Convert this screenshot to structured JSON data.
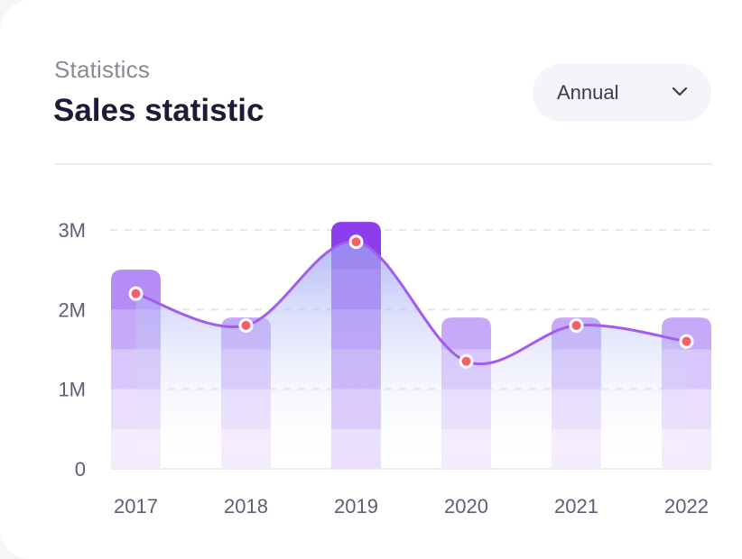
{
  "header": {
    "subtitle": "Statistics",
    "title": "Sales statistic"
  },
  "filter": {
    "selected": "Annual",
    "icon": "chevron-down-icon"
  },
  "colors": {
    "accent": "#a855f7",
    "dot": "#f0616c",
    "grid": "#e4e4ea"
  },
  "chart_data": {
    "type": "bar",
    "categories": [
      "2017",
      "2018",
      "2019",
      "2020",
      "2021",
      "2022"
    ],
    "series": [
      {
        "values": [
          2.5,
          1.9,
          3.1,
          1.9,
          1.9,
          1.9
        ]
      },
      {
        "values": [
          2.2,
          1.8,
          2.85,
          1.35,
          1.8,
          1.6
        ]
      }
    ],
    "ylim": [
      0,
      3
    ],
    "yticks": [
      0,
      1,
      2,
      3
    ],
    "ytick_labels": [
      "0",
      "1M",
      "2M",
      "3M"
    ],
    "grid": true
  }
}
